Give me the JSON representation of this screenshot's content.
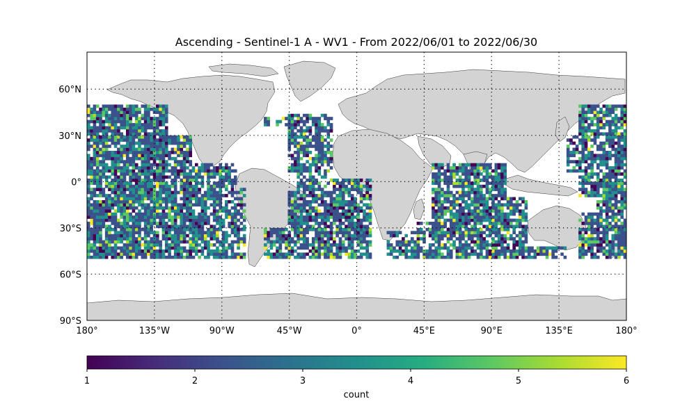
{
  "title": "Ascending - Sentinel-1 A - WV1 - From 2022/06/01 to 2022/06/30",
  "map": {
    "projection": "PlateCarree",
    "lon_range": [
      -180,
      180
    ],
    "lat_range": [
      -90,
      90
    ],
    "land_color": "#d3d3d3",
    "ocean_color": "#ffffff",
    "gridlines": "dotted",
    "grid_cell_deg": 2,
    "data_lat_range": [
      -50,
      50
    ],
    "lon_ticks": [
      {
        "value": -180,
        "label": "180°"
      },
      {
        "value": -135,
        "label": "135°W"
      },
      {
        "value": -90,
        "label": "90°W"
      },
      {
        "value": -45,
        "label": "45°W"
      },
      {
        "value": 0,
        "label": "0°"
      },
      {
        "value": 45,
        "label": "45°E"
      },
      {
        "value": 90,
        "label": "90°E"
      },
      {
        "value": 135,
        "label": "135°E"
      },
      {
        "value": 180,
        "label": "180°"
      }
    ],
    "lat_ticks": [
      {
        "value": 60,
        "label": "60°N"
      },
      {
        "value": 30,
        "label": "30°N"
      },
      {
        "value": 0,
        "label": "0°"
      },
      {
        "value": -30,
        "label": "30°S"
      },
      {
        "value": -60,
        "label": "60°S"
      },
      {
        "value": -90,
        "label": "90°S"
      }
    ]
  },
  "colorbar": {
    "label": "count",
    "colormap": "viridis",
    "min": 1,
    "max": 6,
    "ticks": [
      "1",
      "2",
      "3",
      "4",
      "5",
      "6"
    ]
  },
  "chart_data": {
    "type": "heatmap",
    "variable": "count",
    "value_range": [
      1,
      6
    ],
    "coverage_lat": [
      -50,
      50
    ],
    "dominant_values": [
      2,
      3
    ],
    "title": "Ascending - Sentinel-1 A - WV1 - From 2022/06/01 to 2022/06/30"
  }
}
